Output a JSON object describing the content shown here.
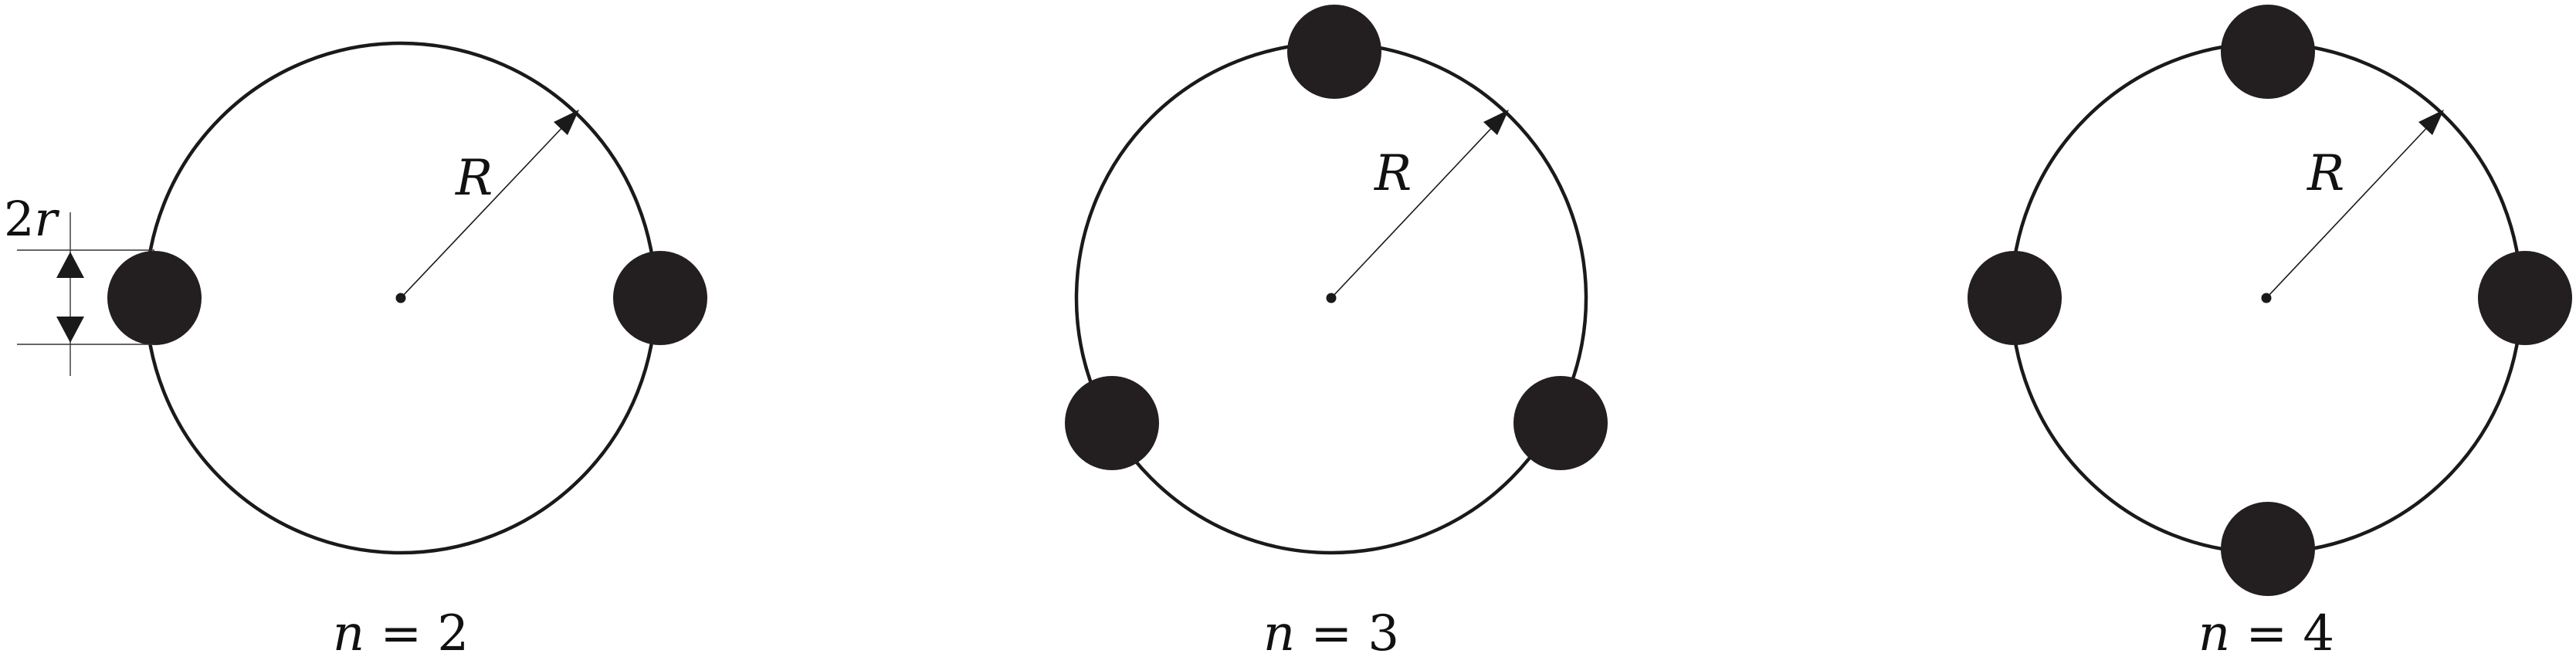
{
  "panels": [
    {
      "radius_label": "R",
      "caption_var": "n",
      "caption_eq": " = ",
      "caption_val": "2"
    },
    {
      "radius_label": "R",
      "caption_var": "n",
      "caption_eq": " = ",
      "caption_val": "3"
    },
    {
      "radius_label": "R",
      "caption_var": "n",
      "caption_eq": " = ",
      "caption_val": "4"
    }
  ],
  "dimension": {
    "coef": "2",
    "var": "r"
  },
  "colors": {
    "ball": "#231f20",
    "line": "#1a1a1a",
    "background": "#ffffff"
  }
}
